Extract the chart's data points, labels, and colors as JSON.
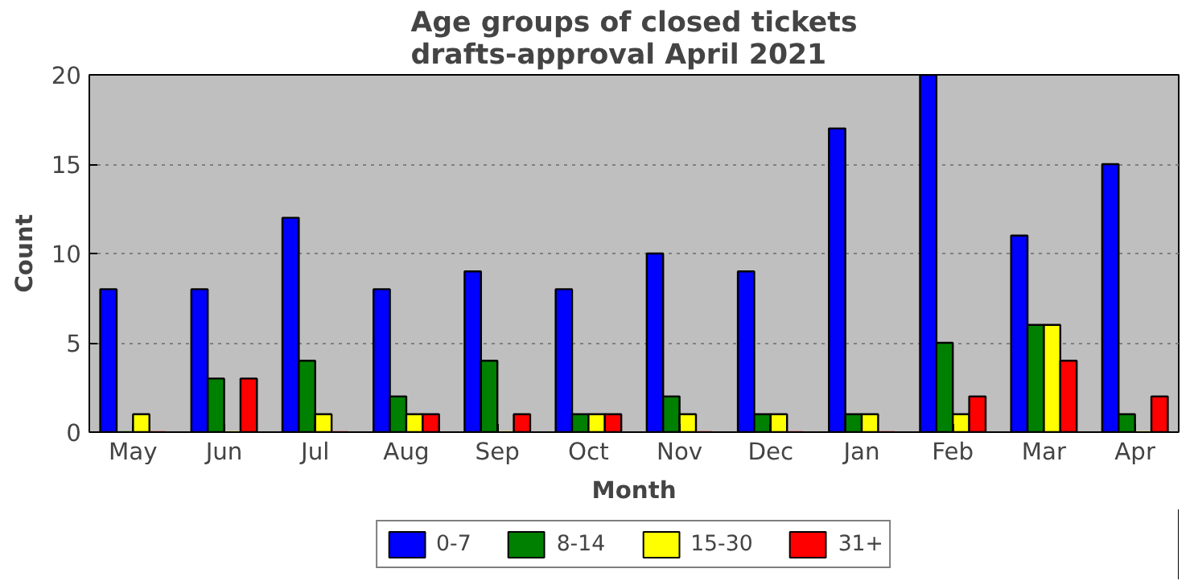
{
  "chart_data": {
    "type": "bar",
    "title": "Age groups of closed tickets\ndrafts-approval April 2021",
    "xlabel": "Month",
    "ylabel": "Count",
    "categories": [
      "May",
      "Jun",
      "Jul",
      "Aug",
      "Sep",
      "Oct",
      "Nov",
      "Dec",
      "Jan",
      "Feb",
      "Mar",
      "Apr"
    ],
    "series": [
      {
        "name": "0-7",
        "color": "#0000ff",
        "values": [
          8,
          8,
          12,
          8,
          9,
          8,
          10,
          9,
          17,
          20,
          11,
          15
        ]
      },
      {
        "name": "8-14",
        "color": "#008000",
        "values": [
          0,
          3,
          4,
          2,
          4,
          1,
          2,
          1,
          1,
          5,
          6,
          1
        ]
      },
      {
        "name": "15-30",
        "color": "#ffff00",
        "values": [
          1,
          0,
          1,
          1,
          0,
          1,
          1,
          1,
          1,
          1,
          6,
          0
        ]
      },
      {
        "name": "31+",
        "color": "#ff0000",
        "values": [
          0,
          3,
          0,
          1,
          1,
          1,
          0,
          0,
          0,
          2,
          4,
          2
        ]
      }
    ],
    "ylim": [
      0,
      20
    ],
    "yticks": [
      0,
      5,
      10,
      15,
      20
    ],
    "grid": "y",
    "legend": "bottom"
  }
}
